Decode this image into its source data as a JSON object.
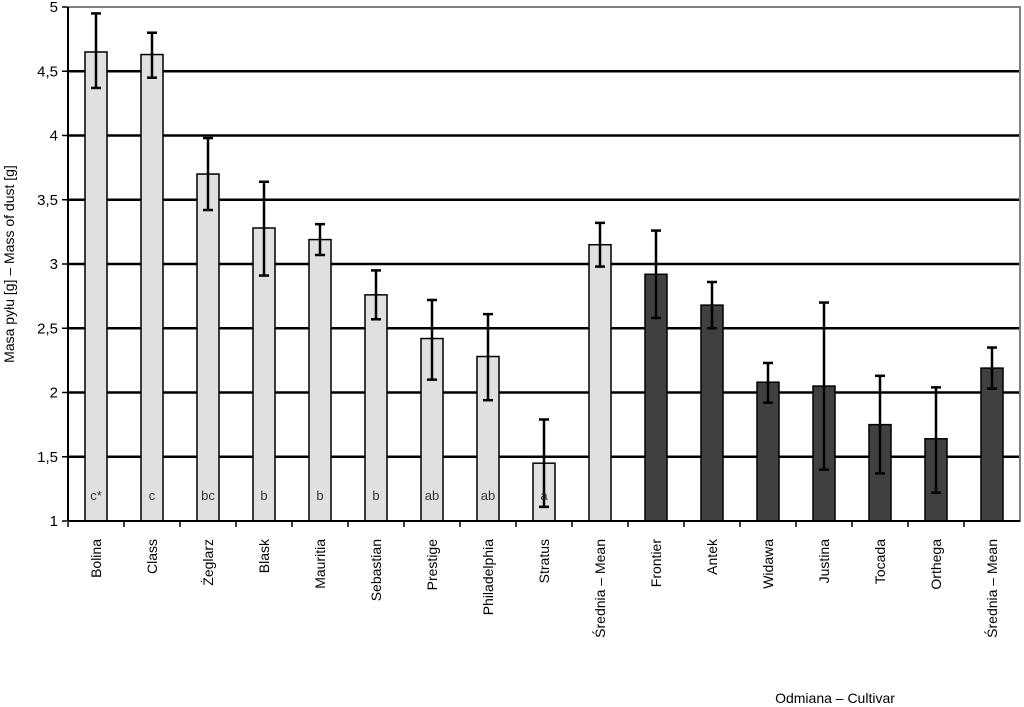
{
  "chart_data": {
    "type": "bar",
    "ylabel": "Masa pyłu [g]  –  Mass of dust [g]",
    "xlabel": "Odmiana  –  Cultivar",
    "ylim": [
      1,
      5
    ],
    "yticks": [
      "1",
      "1,5",
      "2",
      "2,5",
      "3",
      "3,5",
      "4",
      "4,5",
      "5"
    ],
    "grid": true,
    "colors": {
      "group1": "#e0e0e0",
      "group2": "#404040",
      "edge": "#000000"
    },
    "categories": [
      "Bolina",
      "Class",
      "Żeglarz",
      "Blask",
      "Mauritia",
      "Sebastian",
      "Prestige",
      "Philadelphia",
      "Stratus",
      "Średnia – Mean",
      "Frontier",
      "Antek",
      "Widawa",
      "Justina",
      "Tocada",
      "Orthega",
      "Średnia – Mean"
    ],
    "values": [
      4.65,
      4.63,
      3.7,
      3.28,
      3.19,
      2.76,
      2.42,
      2.28,
      1.45,
      3.15,
      2.92,
      2.68,
      2.08,
      2.05,
      1.75,
      1.64,
      2.19
    ],
    "error_low": [
      4.37,
      4.45,
      3.42,
      2.91,
      3.07,
      2.57,
      2.1,
      1.94,
      1.11,
      2.98,
      2.58,
      2.5,
      1.92,
      1.4,
      1.37,
      1.22,
      2.03
    ],
    "error_high": [
      4.95,
      4.8,
      3.98,
      3.64,
      3.31,
      2.95,
      2.72,
      2.61,
      1.79,
      3.32,
      3.26,
      2.86,
      2.23,
      2.7,
      2.13,
      2.04,
      2.35
    ],
    "group": [
      1,
      1,
      1,
      1,
      1,
      1,
      1,
      1,
      1,
      1,
      2,
      2,
      2,
      2,
      2,
      2,
      2
    ],
    "significance": [
      "c*",
      "c",
      "bc",
      "b",
      "b",
      "b",
      "ab",
      "ab",
      "a",
      "",
      "",
      "",
      "",
      "",
      "",
      "",
      ""
    ]
  }
}
